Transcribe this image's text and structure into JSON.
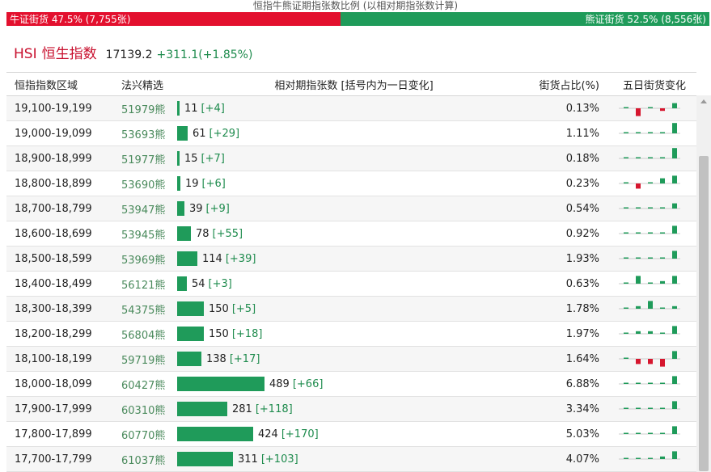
{
  "title": "恒指牛熊证期指张数比例 (以相对期指张数计算)",
  "ratio": {
    "bull_label": "牛证街货 47.5% (7,755张)",
    "bull_percent": 47.5,
    "bear_label": "熊证街货 52.5% (8,556张)",
    "bear_percent": 52.5,
    "bull_color": "#e3102e",
    "bear_color": "#1f9b5a"
  },
  "index": {
    "code": "HSI",
    "name": "恒生指数",
    "value": "17139.2",
    "change": "+311.1(+1.85%)"
  },
  "columns": {
    "range": "恒指指数区域",
    "code": "法兴精选",
    "count": "相对期指张数 [括号内为一日变化]",
    "pct": "街货占比(%)",
    "trend": "五日街货变化"
  },
  "colors": {
    "up": "#1f9b5a",
    "down": "#d6162e"
  },
  "rows": [
    {
      "range": "19,100-19,199",
      "code": "51979熊",
      "count": "11",
      "change": "[+4]",
      "pct": "0.13%",
      "count_value": 11,
      "trend": [
        0,
        -3,
        0,
        -1,
        2
      ]
    },
    {
      "range": "19,000-19,099",
      "code": "53693熊",
      "count": "61",
      "change": "[+29]",
      "pct": "1.11%",
      "count_value": 61,
      "trend": [
        0,
        0,
        0,
        0,
        4
      ]
    },
    {
      "range": "18,900-18,999",
      "code": "51977熊",
      "count": "15",
      "change": "[+7]",
      "pct": "0.18%",
      "count_value": 15,
      "trend": [
        0,
        0,
        0,
        0,
        4
      ]
    },
    {
      "range": "18,800-18,899",
      "code": "53690熊",
      "count": "19",
      "change": "[+6]",
      "pct": "0.23%",
      "count_value": 19,
      "trend": [
        0,
        -2,
        0,
        2,
        3
      ]
    },
    {
      "range": "18,700-18,799",
      "code": "53947熊",
      "count": "39",
      "change": "[+9]",
      "pct": "0.54%",
      "count_value": 39,
      "trend": [
        0,
        0,
        0,
        0,
        2
      ]
    },
    {
      "range": "18,600-18,699",
      "code": "53945熊",
      "count": "78",
      "change": "[+55]",
      "pct": "0.92%",
      "count_value": 78,
      "trend": [
        0,
        0,
        0,
        0,
        3
      ]
    },
    {
      "range": "18,500-18,599",
      "code": "53969熊",
      "count": "114",
      "change": "[+39]",
      "pct": "1.93%",
      "count_value": 114,
      "trend": [
        0,
        0,
        0,
        0,
        3
      ]
    },
    {
      "range": "18,400-18,499",
      "code": "56121熊",
      "count": "54",
      "change": "[+3]",
      "pct": "0.63%",
      "count_value": 54,
      "trend": [
        0,
        3,
        0,
        1,
        3
      ]
    },
    {
      "range": "18,300-18,399",
      "code": "54375熊",
      "count": "150",
      "change": "[+5]",
      "pct": "1.78%",
      "count_value": 150,
      "trend": [
        0,
        1,
        3,
        0,
        1
      ]
    },
    {
      "range": "18,200-18,299",
      "code": "56804熊",
      "count": "150",
      "change": "[+18]",
      "pct": "1.97%",
      "count_value": 150,
      "trend": [
        0,
        1,
        1,
        0,
        3
      ]
    },
    {
      "range": "18,100-18,199",
      "code": "59719熊",
      "count": "138",
      "change": "[+17]",
      "pct": "1.64%",
      "count_value": 138,
      "trend": [
        0,
        -2,
        -2,
        -3,
        3
      ]
    },
    {
      "range": "18,000-18,099",
      "code": "60427熊",
      "count": "489",
      "change": "[+66]",
      "pct": "6.88%",
      "count_value": 489,
      "trend": [
        0,
        0,
        0,
        0,
        3
      ]
    },
    {
      "range": "17,900-17,999",
      "code": "60310熊",
      "count": "281",
      "change": "[+118]",
      "pct": "3.34%",
      "count_value": 281,
      "trend": [
        0,
        0,
        0,
        0,
        3
      ]
    },
    {
      "range": "17,800-17,899",
      "code": "60770熊",
      "count": "424",
      "change": "[+170]",
      "pct": "5.03%",
      "count_value": 424,
      "trend": [
        0,
        0,
        0,
        0,
        3
      ]
    },
    {
      "range": "17,700-17,799",
      "code": "61037熊",
      "count": "311",
      "change": "[+103]",
      "pct": "4.07%",
      "count_value": 311,
      "trend": [
        0,
        0,
        0,
        1,
        3
      ]
    }
  ]
}
